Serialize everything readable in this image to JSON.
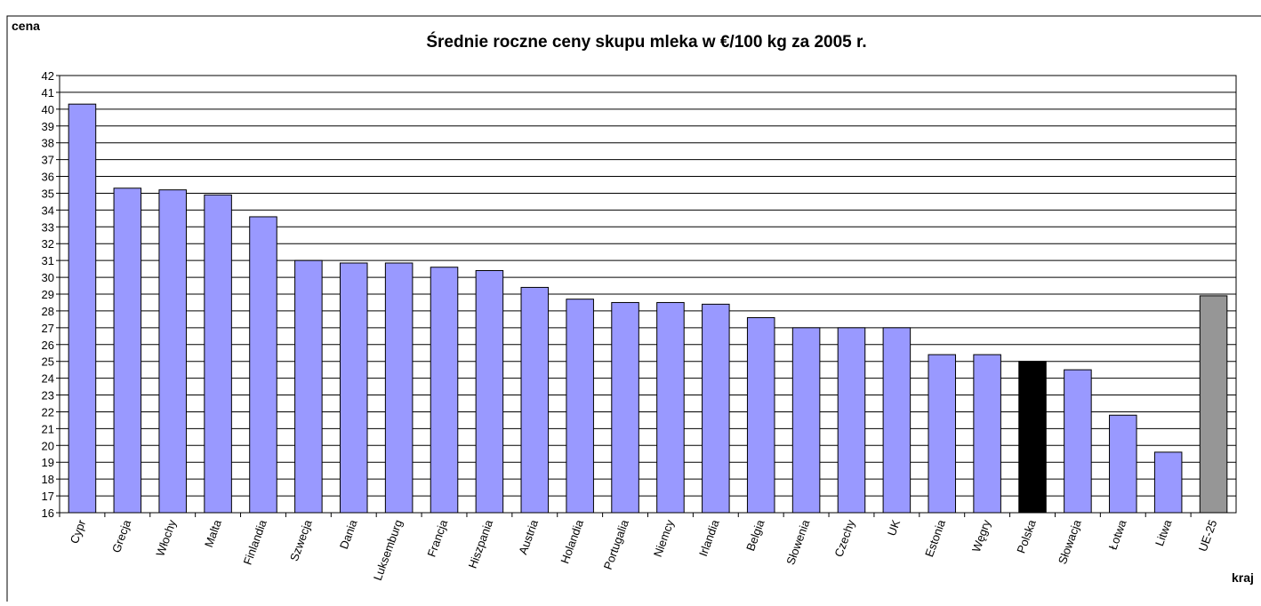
{
  "chart_data": {
    "type": "bar",
    "title": "Średnie roczne ceny skupu mleka w €/100 kg za 2005 r.",
    "ylabel": "cena",
    "xlabel": "kraj",
    "categories": [
      "Cypr",
      "Grecja",
      "Włochy",
      "Malta",
      "Finlandia",
      "Szwecja",
      "Dania",
      "Luksemburg",
      "Francja",
      "Hiszpania",
      "Austria",
      "Holandia",
      "Portugalia",
      "Niemcy",
      "Irlandia",
      "Belgia",
      "Słowenia",
      "Czechy",
      "UK",
      "Estonia",
      "Węgry",
      "Polska",
      "Słowacja",
      "Łotwa",
      "Litwa",
      "UE-25"
    ],
    "values": [
      40.3,
      35.3,
      35.2,
      34.9,
      33.6,
      31.0,
      30.85,
      30.85,
      30.6,
      30.4,
      29.4,
      28.7,
      28.5,
      28.5,
      28.4,
      27.6,
      27.0,
      27.0,
      27.0,
      25.4,
      25.4,
      25.0,
      24.5,
      21.8,
      19.6,
      28.9
    ],
    "colors": [
      "#9999ff",
      "#9999ff",
      "#9999ff",
      "#9999ff",
      "#9999ff",
      "#9999ff",
      "#9999ff",
      "#9999ff",
      "#9999ff",
      "#9999ff",
      "#9999ff",
      "#9999ff",
      "#9999ff",
      "#9999ff",
      "#9999ff",
      "#9999ff",
      "#9999ff",
      "#9999ff",
      "#9999ff",
      "#9999ff",
      "#9999ff",
      "#000000",
      "#9999ff",
      "#9999ff",
      "#9999ff",
      "#969696"
    ],
    "ylim": [
      16,
      42
    ],
    "yticks": [
      16,
      17,
      18,
      19,
      20,
      21,
      22,
      23,
      24,
      25,
      26,
      27,
      28,
      29,
      30,
      31,
      32,
      33,
      34,
      35,
      36,
      37,
      38,
      39,
      40,
      41,
      42
    ],
    "grid": true
  }
}
